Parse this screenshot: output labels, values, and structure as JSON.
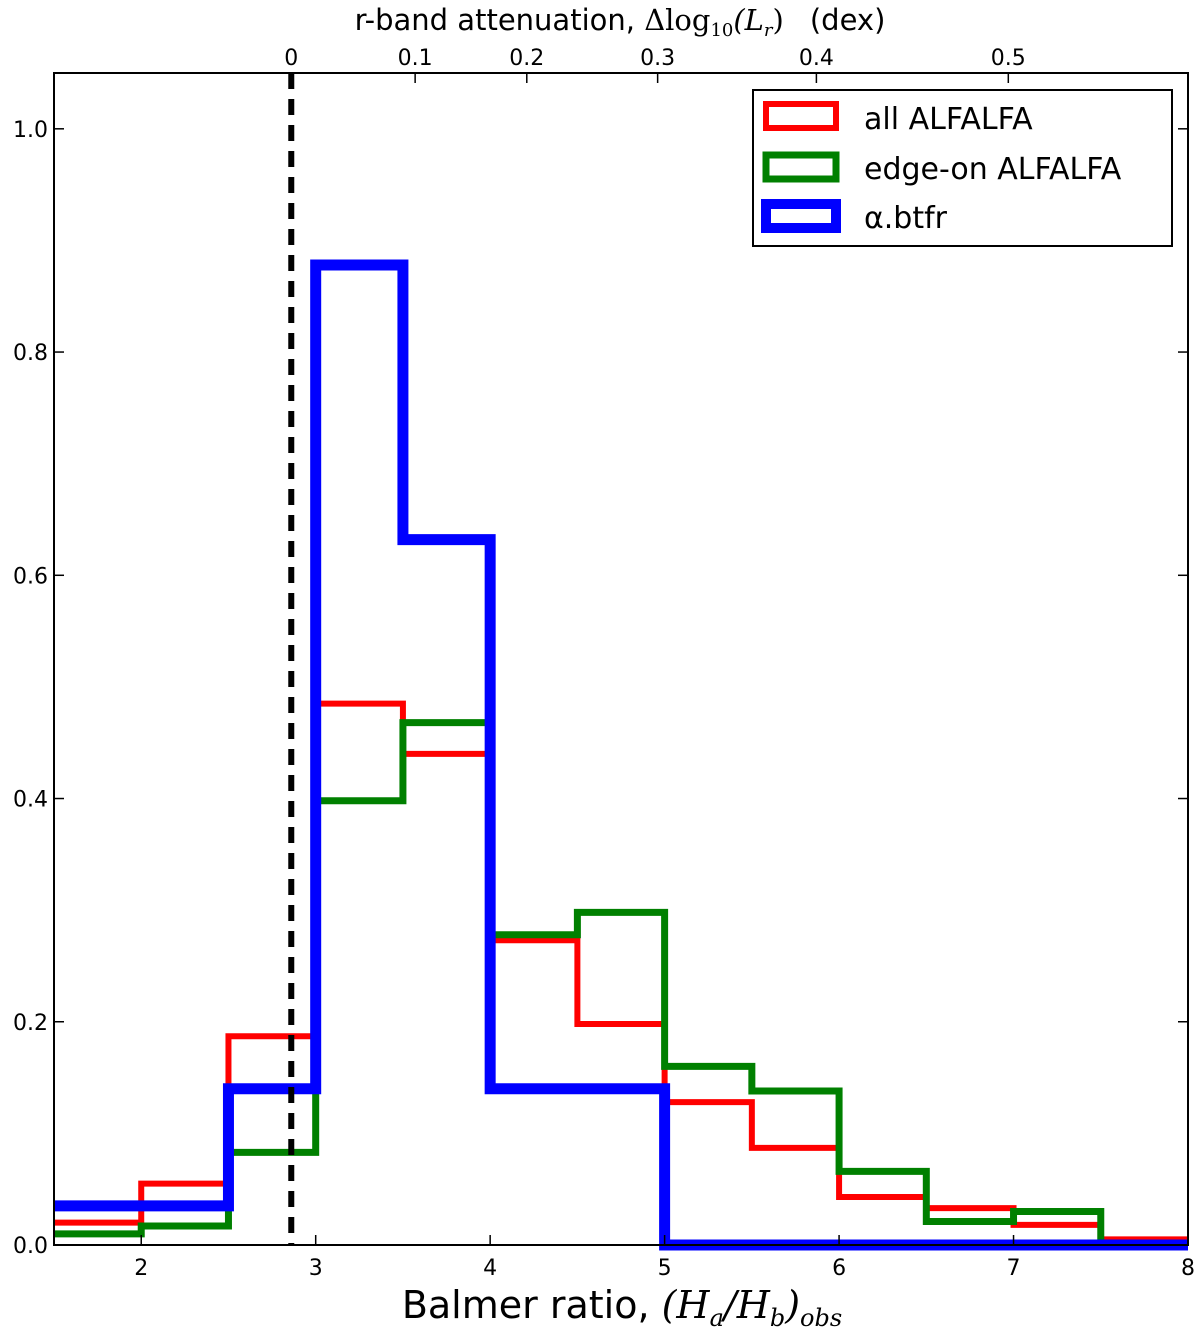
{
  "chart_data": {
    "type": "histogram",
    "xlabel_text": "Balmer ratio, ",
    "xlabel_math": "(H",
    "xlabel_sub_a": "a",
    "xlabel_slash": "/H",
    "xlabel_sub_b": "b",
    "xlabel_close": ")",
    "xlabel_sub_obs": "obs",
    "top_label_text": "r-band attenuation, ",
    "top_label_math": "Δlog",
    "top_label_sub10": "10",
    "top_label_paren": "(L",
    "top_label_sub_r": "r",
    "top_label_close": ")",
    "top_label_unit": "(dex)",
    "xlim": [
      1.5,
      8
    ],
    "ylim": [
      0,
      1.05
    ],
    "xticks": [
      2,
      3,
      4,
      5,
      6,
      7,
      8
    ],
    "yticks": [
      0.0,
      0.2,
      0.4,
      0.6,
      0.8,
      1.0
    ],
    "top_ticks": [
      {
        "label": "0",
        "x": 2.86
      },
      {
        "label": "0.1",
        "x": 3.57
      },
      {
        "label": "0.2",
        "x": 4.21
      },
      {
        "label": "0.3",
        "x": 4.96
      },
      {
        "label": "0.4",
        "x": 5.87
      },
      {
        "label": "0.5",
        "x": 6.97
      }
    ],
    "reference_line_x": 2.86,
    "bin_edges": [
      1.5,
      2.0,
      2.5,
      3.0,
      3.5,
      4.0,
      4.5,
      5.0,
      5.5,
      6.0,
      6.5,
      7.0,
      7.5,
      8.0
    ],
    "series": [
      {
        "name": "all ALFALFA",
        "color": "#ff0000",
        "values": [
          0.02,
          0.055,
          0.187,
          0.485,
          0.44,
          0.273,
          0.198,
          0.128,
          0.087,
          0.043,
          0.033,
          0.018,
          0.005
        ]
      },
      {
        "name": "edge-on ALFALFA",
        "color": "#008000",
        "values": [
          0.01,
          0.017,
          0.083,
          0.398,
          0.468,
          0.278,
          0.298,
          0.16,
          0.138,
          0.066,
          0.021,
          0.03,
          0.0
        ]
      },
      {
        "name": "α.btfr",
        "color": "#0000ff",
        "edges": [
          1.5,
          2.5,
          3.0,
          3.5,
          4.0,
          5.0,
          8.0
        ],
        "values": [
          0.035,
          0.14,
          0.878,
          0.632,
          0.14,
          0.0
        ]
      }
    ],
    "legend_placement": "top-right"
  }
}
